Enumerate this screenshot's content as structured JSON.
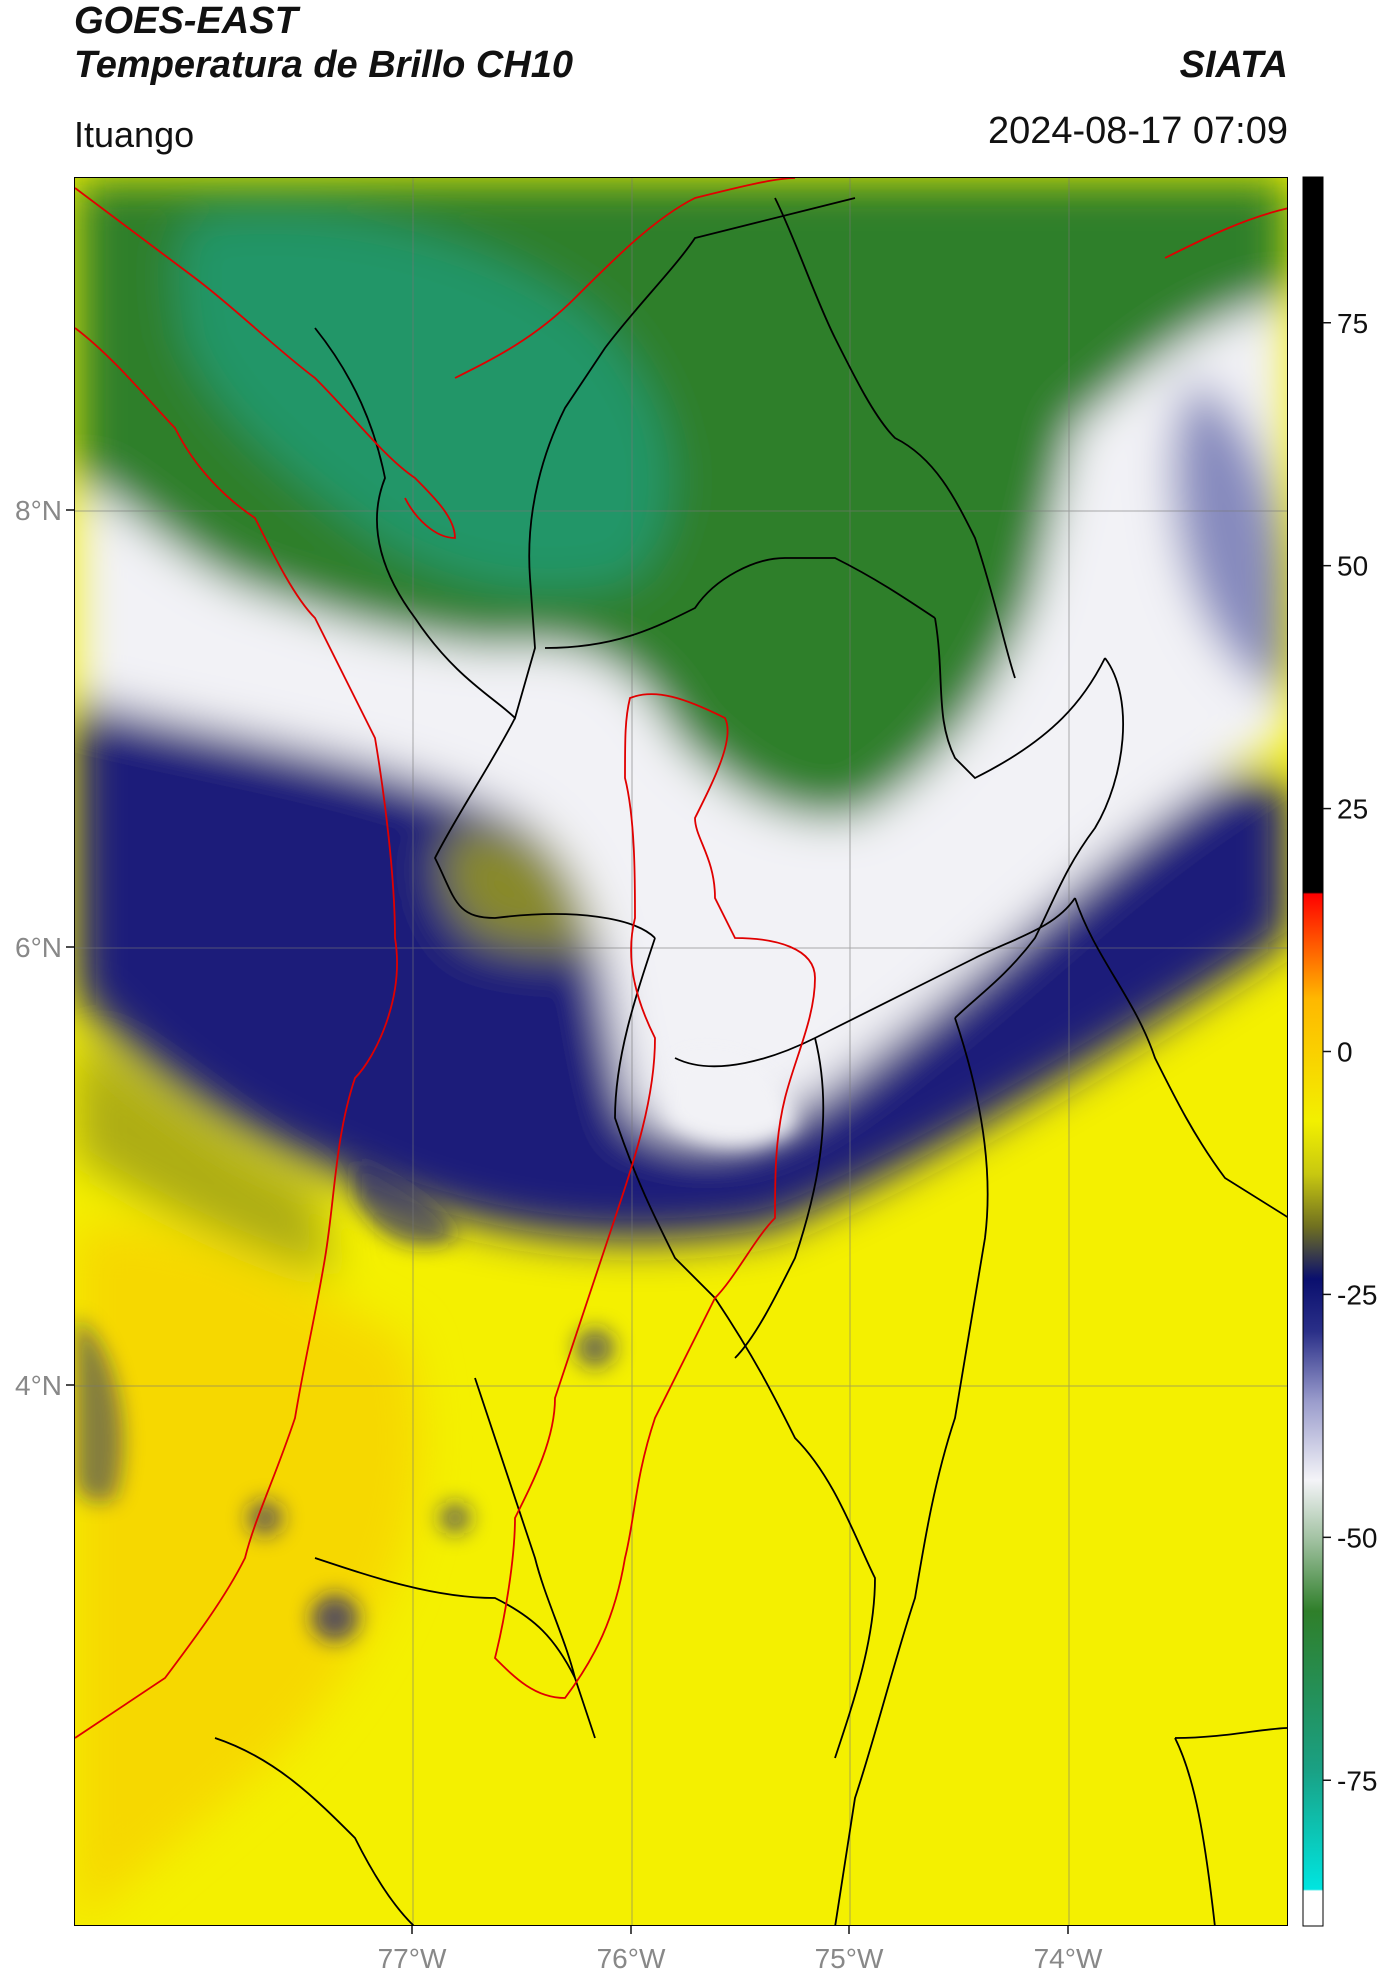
{
  "header": {
    "satellite": "GOES-EAST",
    "product": "Temperatura de Brillo CH10",
    "organization": "SIATA",
    "location": "Ituango",
    "timestamp": "2024-08-17 07:09"
  },
  "map": {
    "lat_ticks": [
      "8°N",
      "6°N",
      "4°N"
    ],
    "lon_ticks": [
      "77°W",
      "76°W",
      "75°W",
      "74°W"
    ],
    "gridlines": true,
    "colors": {
      "cold_cloud_green": "#2e8b57",
      "deep_green": "#3a8a2a",
      "white_band": "#f2f2f6",
      "navy": "#1a1f7a",
      "olive": "#9c9c1c",
      "yellow": "#f4f000",
      "orange_yellow": "#f6d800",
      "red_boundary": "#e00000",
      "black_boundary": "#000000"
    }
  },
  "colorbar": {
    "ticks": [
      "75",
      "50",
      "25",
      "0",
      "-25",
      "-50",
      "-75"
    ],
    "tick_values": [
      75,
      50,
      25,
      0,
      -25,
      -50,
      -75
    ],
    "range": [
      -90,
      90
    ],
    "colors": [
      "#ffffff",
      "#00e5e0",
      "#1aa083",
      "#2f7f2a",
      "#f4f4f8",
      "#6a6fb0",
      "#0a0f6e",
      "#707020",
      "#f2f000",
      "#ffa000",
      "#ff2000",
      "#000000"
    ]
  }
}
